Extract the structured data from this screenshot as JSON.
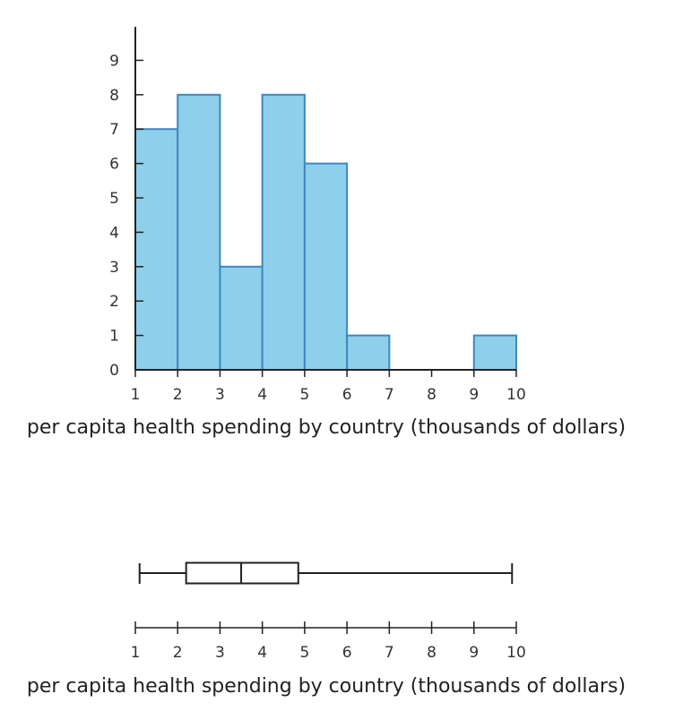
{
  "chart_data": [
    {
      "type": "histogram",
      "title": "",
      "xlabel": "per capita health spending by country (thousands of dollars)",
      "ylabel": "",
      "xlim": [
        1,
        10
      ],
      "ylim": [
        0,
        10
      ],
      "x_ticks": [
        "1",
        "2",
        "3",
        "4",
        "5",
        "6",
        "7",
        "8",
        "9",
        "10"
      ],
      "y_ticks": [
        "0",
        "1",
        "2",
        "3",
        "4",
        "5",
        "6",
        "7",
        "8",
        "9"
      ],
      "bins": [
        [
          1,
          2
        ],
        [
          2,
          3
        ],
        [
          3,
          4
        ],
        [
          4,
          5
        ],
        [
          5,
          6
        ],
        [
          6,
          7
        ],
        [
          7,
          8
        ],
        [
          8,
          9
        ],
        [
          9,
          10
        ]
      ],
      "values": [
        7,
        8,
        3,
        8,
        6,
        1,
        0,
        0,
        1
      ],
      "bar_color": "#8ecfea",
      "bar_edge_color": "#3d88c0"
    },
    {
      "type": "boxplot",
      "title": "",
      "xlabel": "per capita health spending by country (thousands of dollars)",
      "xlim": [
        1,
        10
      ],
      "x_ticks": [
        "1",
        "2",
        "3",
        "4",
        "5",
        "6",
        "7",
        "8",
        "9",
        "10"
      ],
      "min": 1.1,
      "q1": 2.2,
      "median": 3.5,
      "q3": 4.85,
      "max": 9.9
    }
  ]
}
